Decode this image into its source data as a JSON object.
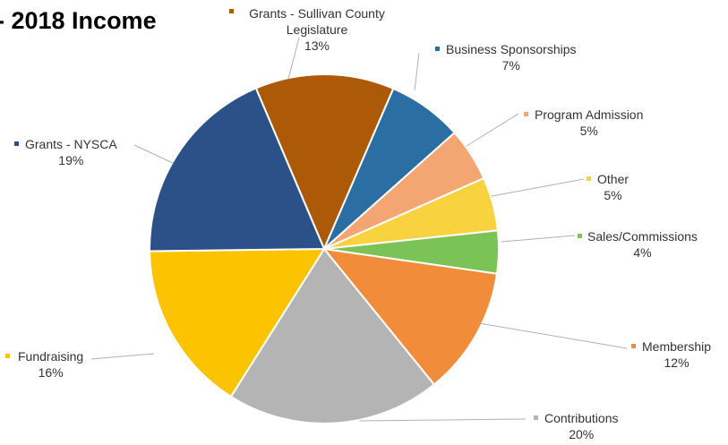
{
  "title": "- 2018 Income",
  "chart_data": {
    "type": "pie",
    "title": "- 2018 Income",
    "legend": "none",
    "unit": "%",
    "slices": [
      {
        "label": "Grants - Sullivan County Legislature",
        "label_lines": [
          "Grants - Sullivan County",
          "Legislature"
        ],
        "value": 13,
        "value_label": "13%",
        "color": "#AD5A08"
      },
      {
        "label": "Business Sponsorships",
        "label_lines": [
          "Business Sponsorships"
        ],
        "value": 7,
        "value_label": "7%",
        "color": "#2B6EA3"
      },
      {
        "label": "Program Admission",
        "label_lines": [
          "Program Admission"
        ],
        "value": 5,
        "value_label": "5%",
        "color": "#F4A672"
      },
      {
        "label": "Other",
        "label_lines": [
          "Other"
        ],
        "value": 5,
        "value_label": "5%",
        "color": "#F9D23F"
      },
      {
        "label": "Sales/Commissions",
        "label_lines": [
          "Sales/Commissions"
        ],
        "value": 4,
        "value_label": "4%",
        "color": "#7CC357"
      },
      {
        "label": "Membership",
        "label_lines": [
          "Membership"
        ],
        "value": 12,
        "value_label": "12%",
        "color": "#F08C3A"
      },
      {
        "label": "Contributions",
        "label_lines": [
          "Contributions"
        ],
        "value": 20,
        "value_label": "20%",
        "color": "#B4B4B4"
      },
      {
        "label": "Fundraising",
        "label_lines": [
          "Fundraising"
        ],
        "value": 16,
        "value_label": "16%",
        "color": "#FBC300"
      },
      {
        "label": "Grants - NYSCA",
        "label_lines": [
          "Grants - NYSCA"
        ],
        "value": 19,
        "value_label": "19%",
        "color": "#2C5189"
      }
    ]
  }
}
